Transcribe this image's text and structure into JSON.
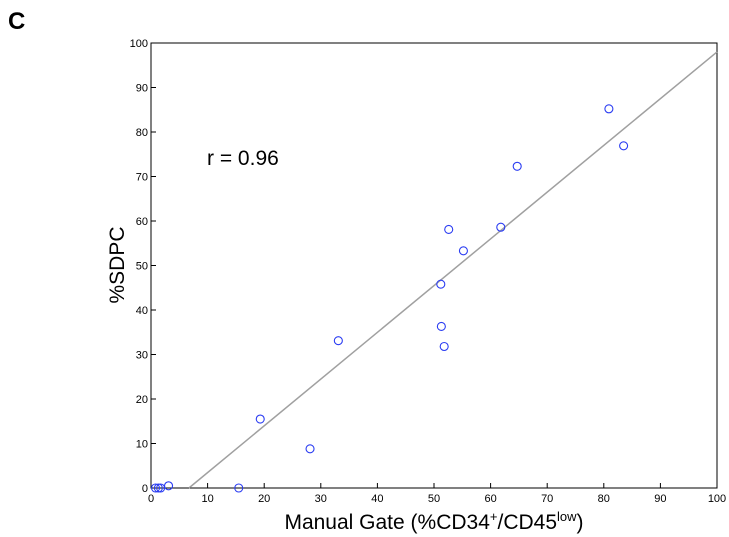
{
  "panel_label": "C",
  "chart_data": {
    "type": "scatter",
    "xlim": [
      0,
      100
    ],
    "ylim": [
      0,
      100
    ],
    "x_ticks": [
      0,
      10,
      20,
      30,
      40,
      50,
      60,
      70,
      80,
      90,
      100
    ],
    "y_ticks": [
      0,
      10,
      20,
      30,
      40,
      50,
      60,
      70,
      80,
      90,
      100
    ],
    "xlabel": {
      "main": "Manual Gate (%CD34",
      "sup1": "+",
      "mid": "/CD45",
      "sup2": "low",
      "end": ")"
    },
    "ylabel": "%SDPC",
    "annotation": "r = 0.96",
    "grid": false,
    "points": [
      {
        "x": 0.8,
        "y": 0
      },
      {
        "x": 1.3,
        "y": 0
      },
      {
        "x": 1.7,
        "y": 0
      },
      {
        "x": 3.1,
        "y": 0.5
      },
      {
        "x": 15.5,
        "y": 0
      },
      {
        "x": 19.3,
        "y": 15.5
      },
      {
        "x": 28.1,
        "y": 8.8
      },
      {
        "x": 33.1,
        "y": 33.1
      },
      {
        "x": 51.2,
        "y": 45.8
      },
      {
        "x": 51.3,
        "y": 36.3
      },
      {
        "x": 51.8,
        "y": 31.8
      },
      {
        "x": 52.6,
        "y": 58.1
      },
      {
        "x": 55.2,
        "y": 53.3
      },
      {
        "x": 61.8,
        "y": 58.6
      },
      {
        "x": 64.7,
        "y": 72.3
      },
      {
        "x": 80.9,
        "y": 85.2
      },
      {
        "x": 83.5,
        "y": 76.9
      }
    ],
    "fit_line": {
      "x": [
        6.7,
        100
      ],
      "y": [
        0,
        98
      ]
    },
    "point_color": "#2a3cf2",
    "line_color": "#a0a0a0"
  }
}
